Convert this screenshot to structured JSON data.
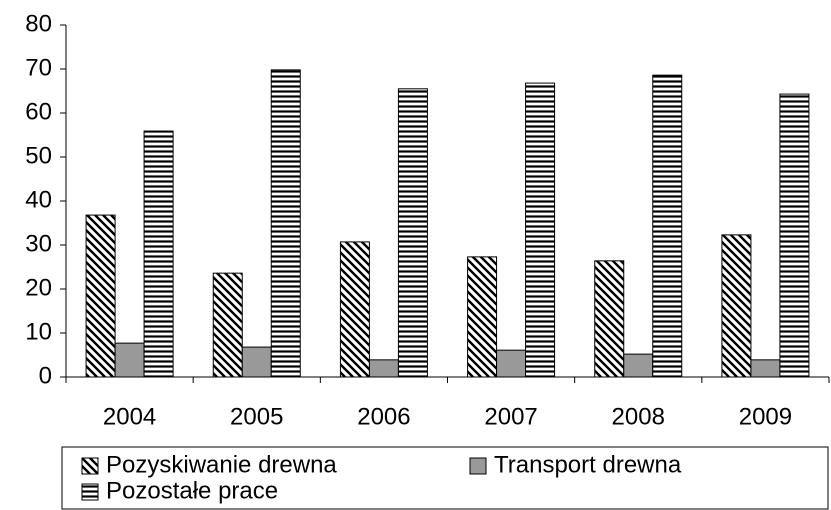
{
  "chart_data": {
    "type": "bar",
    "categories": [
      "2004",
      "2005",
      "2006",
      "2007",
      "2008",
      "2009"
    ],
    "series": [
      {
        "name": "Pozyskiwanie drewna",
        "color": "#000000",
        "pattern": "diagonal",
        "values": [
          36.8,
          23.6,
          30.7,
          27.3,
          26.4,
          32.3
        ]
      },
      {
        "name": "Transport drewna",
        "color": "#999999",
        "pattern": "solid",
        "values": [
          7.7,
          6.8,
          3.9,
          6.1,
          5.2,
          3.9
        ]
      },
      {
        "name": "Pozostałe prace",
        "color": "#000000",
        "pattern": "horizontal",
        "values": [
          55.9,
          69.8,
          65.5,
          66.8,
          68.6,
          64.3
        ]
      }
    ],
    "ylim": [
      0,
      80
    ],
    "yticks": [
      0,
      10,
      20,
      30,
      40,
      50,
      60,
      70,
      80
    ],
    "grid": false
  }
}
